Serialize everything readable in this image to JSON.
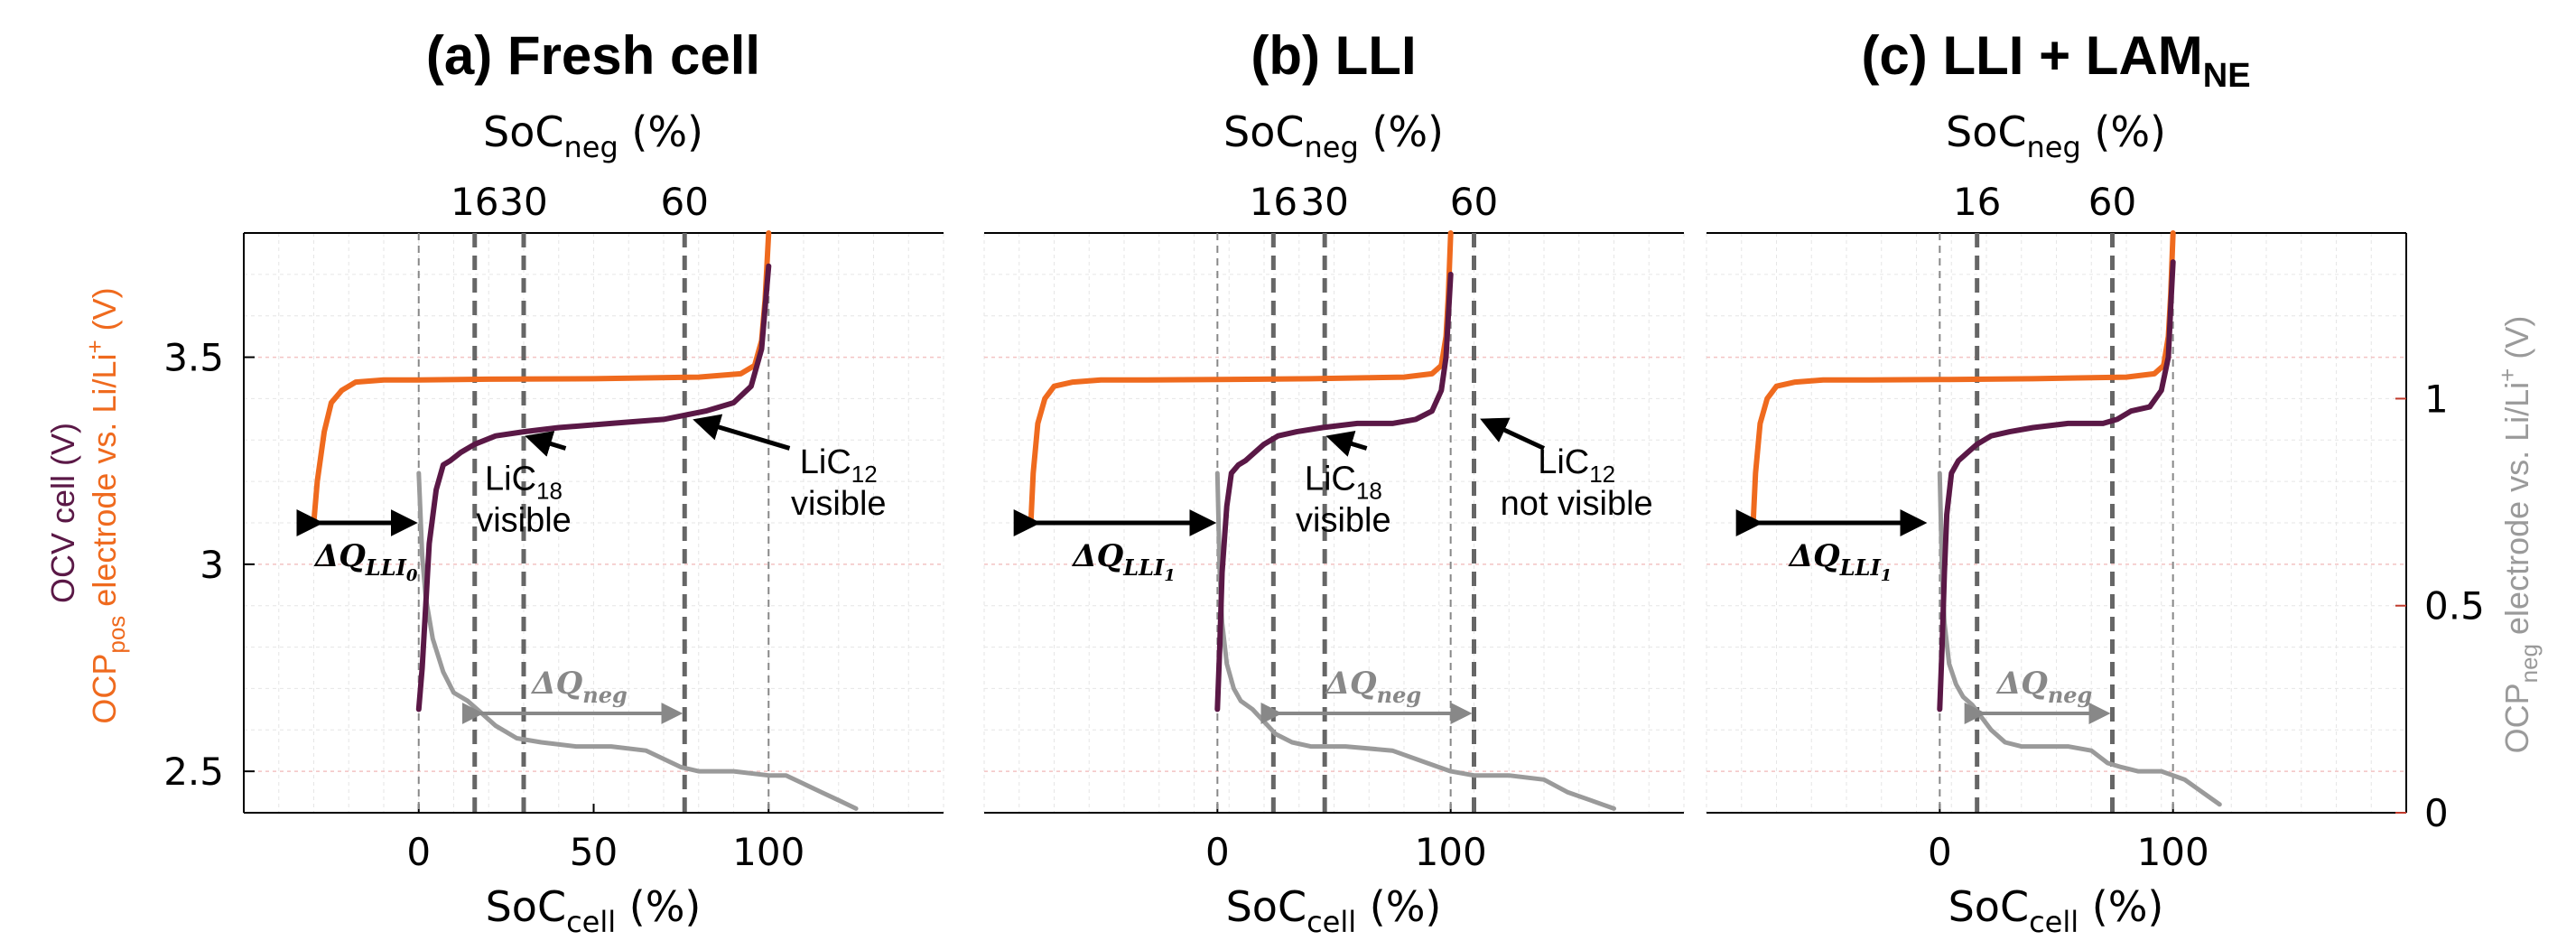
{
  "colors": {
    "ocv": "#5a1846",
    "pos": "#ef6a1e",
    "neg": "#9a9a9a",
    "dashed": "#666666",
    "grid_red": "#f3c4c4",
    "grid_gray": "#e6e6e6"
  },
  "yaxis_left": {
    "label_ocv": "OCV cell (V)",
    "label_pos_main": "OCP",
    "label_pos_sub": "pos",
    "label_pos_rest": " electrode vs. Li/Li",
    "label_pos_sup": "+",
    "label_pos_end": " (V)",
    "ticks": [
      "3.5",
      "3",
      "2.5"
    ],
    "tick_values": [
      3.5,
      3.0,
      2.5
    ],
    "range": [
      2.4,
      3.8
    ]
  },
  "yaxis_right": {
    "label_main": "OCP",
    "label_sub": "neg",
    "label_rest": " electrode vs. Li/Li",
    "label_sup": "+",
    "label_end": " (V)",
    "ticks": [
      "1",
      "0.5",
      "0"
    ],
    "tick_values": [
      1.0,
      0.5,
      0.0
    ],
    "range": [
      0.0,
      1.4
    ]
  },
  "xlabel_main": "SoC",
  "xlabel_sub": "cell",
  "xlabel_end": " (%)",
  "toplabel_main": "SoC",
  "toplabel_sub": "neg",
  "toplabel_end": " (%)",
  "panels": [
    {
      "title": "(a) Fresh cell",
      "title_main": "(a) Fresh cell",
      "title_sub": "",
      "xlim": [
        -50,
        150
      ],
      "xticks": [
        "0",
        "50",
        "100"
      ],
      "xtick_values": [
        0,
        50,
        100
      ],
      "top_ticks": [
        "16",
        "30",
        "60"
      ],
      "top_tick_x": [
        16,
        30,
        76
      ],
      "thin_vlines": [
        0,
        100
      ],
      "dq_label": "ΔQ",
      "dq_sub": "LLI",
      "dq_subsub": "0",
      "dq_span": [
        -30,
        0
      ],
      "dqneg_label": "ΔQ",
      "dqneg_sub": "neg",
      "dqneg_span": [
        16,
        76
      ],
      "annotations": [
        {
          "line1": "LiC",
          "sub": "18",
          "line2": "visible"
        },
        {
          "line1": "LiC",
          "sub": "12",
          "line2": "visible"
        }
      ],
      "pos_curve": {
        "x": [
          -30,
          -29,
          -27,
          -25,
          -22,
          -18,
          -10,
          0,
          20,
          50,
          80,
          92,
          96,
          98,
          99,
          100
        ],
        "y": [
          3.1,
          3.2,
          3.32,
          3.39,
          3.42,
          3.44,
          3.445,
          3.445,
          3.447,
          3.448,
          3.452,
          3.46,
          3.48,
          3.54,
          3.64,
          3.8
        ]
      },
      "ocv_curve": {
        "x": [
          0,
          1,
          2,
          3,
          5,
          7,
          9,
          12,
          16,
          22,
          30,
          40,
          55,
          70,
          76,
          82,
          90,
          95,
          98,
          99,
          100
        ],
        "y": [
          2.65,
          2.75,
          2.9,
          3.05,
          3.18,
          3.24,
          3.25,
          3.27,
          3.29,
          3.31,
          3.32,
          3.33,
          3.34,
          3.35,
          3.36,
          3.37,
          3.39,
          3.43,
          3.52,
          3.62,
          3.72
        ]
      },
      "neg_curve": {
        "x": [
          0,
          0.5,
          1,
          2,
          4,
          7,
          10,
          14,
          18,
          22,
          28,
          35,
          45,
          55,
          65,
          75,
          80,
          90,
          100,
          105,
          110,
          115,
          120,
          125
        ],
        "y": [
          0.82,
          0.72,
          0.62,
          0.52,
          0.42,
          0.34,
          0.29,
          0.27,
          0.24,
          0.21,
          0.18,
          0.17,
          0.16,
          0.16,
          0.15,
          0.11,
          0.1,
          0.1,
          0.09,
          0.09,
          0.07,
          0.05,
          0.03,
          0.01
        ]
      }
    },
    {
      "title": "(b) LLI",
      "title_main": "(b) LLI",
      "title_sub": "",
      "xlim": [
        -100,
        200
      ],
      "xticks": [
        "0",
        "100"
      ],
      "xtick_values": [
        0,
        100
      ],
      "top_ticks": [
        "16",
        "30",
        "60"
      ],
      "top_tick_x": [
        24,
        46,
        110
      ],
      "thin_vlines": [
        0,
        100
      ],
      "dq_label": "ΔQ",
      "dq_sub": "LLI",
      "dq_subsub": "1",
      "dq_span": [
        -80,
        0
      ],
      "dqneg_label": "ΔQ",
      "dqneg_sub": "neg",
      "dqneg_span": [
        24,
        110
      ],
      "annotations": [
        {
          "line1": "LiC",
          "sub": "18",
          "line2": "visible"
        },
        {
          "line1": "LiC",
          "sub": "12",
          "line2": "not visible"
        }
      ],
      "pos_curve": {
        "x": [
          -80,
          -79,
          -77,
          -74,
          -70,
          -62,
          -50,
          -30,
          0,
          40,
          80,
          92,
          96,
          98,
          99,
          100
        ],
        "y": [
          3.1,
          3.22,
          3.34,
          3.4,
          3.43,
          3.44,
          3.445,
          3.445,
          3.446,
          3.448,
          3.452,
          3.46,
          3.48,
          3.55,
          3.65,
          3.8
        ]
      },
      "ocv_curve": {
        "x": [
          0,
          1,
          2,
          4,
          6,
          9,
          12,
          16,
          20,
          26,
          34,
          45,
          60,
          75,
          85,
          92,
          96,
          98,
          99,
          100
        ],
        "y": [
          2.65,
          2.8,
          2.98,
          3.14,
          3.22,
          3.24,
          3.25,
          3.27,
          3.29,
          3.31,
          3.32,
          3.33,
          3.34,
          3.34,
          3.35,
          3.37,
          3.42,
          3.5,
          3.6,
          3.7
        ]
      },
      "neg_curve": {
        "x": [
          0,
          0.5,
          1,
          2,
          4,
          7,
          10,
          15,
          20,
          25,
          32,
          40,
          55,
          75,
          90,
          100,
          110,
          125,
          140,
          150,
          160,
          170
        ],
        "y": [
          0.82,
          0.7,
          0.58,
          0.46,
          0.36,
          0.3,
          0.27,
          0.25,
          0.22,
          0.19,
          0.17,
          0.16,
          0.16,
          0.15,
          0.12,
          0.1,
          0.09,
          0.09,
          0.08,
          0.05,
          0.03,
          0.01
        ]
      }
    },
    {
      "title": "(c) LLI + LAMNE",
      "title_main": "(c) LLI + LAM",
      "title_sub": "NE",
      "xlim": [
        -100,
        200
      ],
      "xticks": [
        "0",
        "100"
      ],
      "xtick_values": [
        0,
        100
      ],
      "top_ticks": [
        "16",
        "60"
      ],
      "top_tick_x": [
        16,
        74
      ],
      "thin_vlines": [
        0,
        100
      ],
      "dq_label": "ΔQ",
      "dq_sub": "LLI",
      "dq_subsub": "1",
      "dq_span": [
        -80,
        -5
      ],
      "dqneg_label": "ΔQ",
      "dqneg_sub": "neg",
      "dqneg_span": [
        16,
        74
      ],
      "annotations": [],
      "pos_curve": {
        "x": [
          -80,
          -79,
          -77,
          -74,
          -70,
          -62,
          -50,
          -30,
          0,
          40,
          80,
          92,
          96,
          98,
          99,
          100
        ],
        "y": [
          3.1,
          3.22,
          3.34,
          3.4,
          3.43,
          3.44,
          3.445,
          3.445,
          3.446,
          3.448,
          3.452,
          3.46,
          3.48,
          3.55,
          3.65,
          3.8
        ]
      },
      "ocv_curve": {
        "x": [
          0,
          1,
          2,
          3,
          5,
          8,
          12,
          16,
          22,
          30,
          40,
          55,
          70,
          76,
          82,
          90,
          95,
          98,
          99,
          100
        ],
        "y": [
          2.65,
          2.8,
          2.98,
          3.12,
          3.22,
          3.25,
          3.27,
          3.29,
          3.31,
          3.32,
          3.33,
          3.34,
          3.34,
          3.35,
          3.37,
          3.38,
          3.42,
          3.5,
          3.62,
          3.73
        ]
      },
      "neg_curve": {
        "x": [
          0,
          0.5,
          1,
          2,
          4,
          7,
          10,
          14,
          18,
          22,
          28,
          35,
          45,
          55,
          65,
          72,
          78,
          85,
          95,
          100,
          105,
          110,
          115,
          120
        ],
        "y": [
          0.82,
          0.7,
          0.58,
          0.46,
          0.36,
          0.31,
          0.28,
          0.26,
          0.23,
          0.2,
          0.17,
          0.16,
          0.16,
          0.16,
          0.15,
          0.12,
          0.11,
          0.1,
          0.1,
          0.09,
          0.08,
          0.06,
          0.04,
          0.02
        ]
      }
    }
  ],
  "chart_data": [
    {
      "type": "line",
      "title": "(a) Fresh cell",
      "xlabel": "SoC cell (%)",
      "x2label": "SoC neg (%)",
      "ylabel": "OCV cell (V) / OCP pos electrode vs. Li/Li+ (V)",
      "y2label": "OCP neg electrode vs. Li/Li+ (V)",
      "xlim": [
        -50,
        150
      ],
      "ylim": [
        2.4,
        3.8
      ],
      "y2lim": [
        0,
        1.4
      ],
      "series": [
        {
          "name": "OCV cell",
          "x": [
            0,
            3,
            9,
            30,
            55,
            76,
            90,
            98,
            100
          ],
          "y": [
            2.65,
            3.05,
            3.25,
            3.32,
            3.34,
            3.36,
            3.39,
            3.52,
            3.72
          ]
        },
        {
          "name": "OCP pos",
          "x": [
            -30,
            -25,
            -18,
            0,
            50,
            92,
            98,
            100
          ],
          "y": [
            3.1,
            3.39,
            3.44,
            3.445,
            3.448,
            3.46,
            3.54,
            3.8
          ]
        },
        {
          "name": "OCP neg",
          "x": [
            0,
            2,
            10,
            22,
            45,
            75,
            100,
            125
          ],
          "y": [
            0.82,
            0.52,
            0.29,
            0.21,
            0.16,
            0.11,
            0.09,
            0.01
          ]
        }
      ]
    },
    {
      "type": "line",
      "title": "(b) LLI",
      "xlabel": "SoC cell (%)",
      "x2label": "SoC neg (%)",
      "xlim": [
        -100,
        200
      ],
      "ylim": [
        2.4,
        3.8
      ],
      "y2lim": [
        0,
        1.4
      ],
      "series": [
        {
          "name": "OCV cell",
          "x": [
            0,
            4,
            12,
            34,
            60,
            85,
            96,
            100
          ],
          "y": [
            2.65,
            3.14,
            3.25,
            3.32,
            3.34,
            3.35,
            3.42,
            3.7
          ]
        },
        {
          "name": "OCP pos",
          "x": [
            -80,
            -74,
            -62,
            0,
            80,
            96,
            100
          ],
          "y": [
            3.1,
            3.4,
            3.44,
            3.446,
            3.452,
            3.48,
            3.8
          ]
        },
        {
          "name": "OCP neg",
          "x": [
            0,
            2,
            10,
            25,
            55,
            90,
            125,
            170
          ],
          "y": [
            0.82,
            0.46,
            0.27,
            0.19,
            0.16,
            0.12,
            0.09,
            0.01
          ]
        }
      ]
    },
    {
      "type": "line",
      "title": "(c) LLI + LAMNE",
      "xlabel": "SoC cell (%)",
      "x2label": "SoC neg (%)",
      "xlim": [
        -100,
        200
      ],
      "ylim": [
        2.4,
        3.8
      ],
      "y2lim": [
        0,
        1.4
      ],
      "series": [
        {
          "name": "OCV cell",
          "x": [
            0,
            3,
            12,
            30,
            55,
            76,
            95,
            100
          ],
          "y": [
            2.65,
            3.12,
            3.27,
            3.32,
            3.34,
            3.35,
            3.42,
            3.73
          ]
        },
        {
          "name": "OCP pos",
          "x": [
            -80,
            -74,
            -62,
            0,
            80,
            96,
            100
          ],
          "y": [
            3.1,
            3.4,
            3.44,
            3.446,
            3.452,
            3.48,
            3.8
          ]
        },
        {
          "name": "OCP neg",
          "x": [
            0,
            2,
            10,
            22,
            45,
            72,
            100,
            120
          ],
          "y": [
            0.82,
            0.46,
            0.28,
            0.2,
            0.16,
            0.12,
            0.09,
            0.02
          ]
        }
      ]
    }
  ]
}
